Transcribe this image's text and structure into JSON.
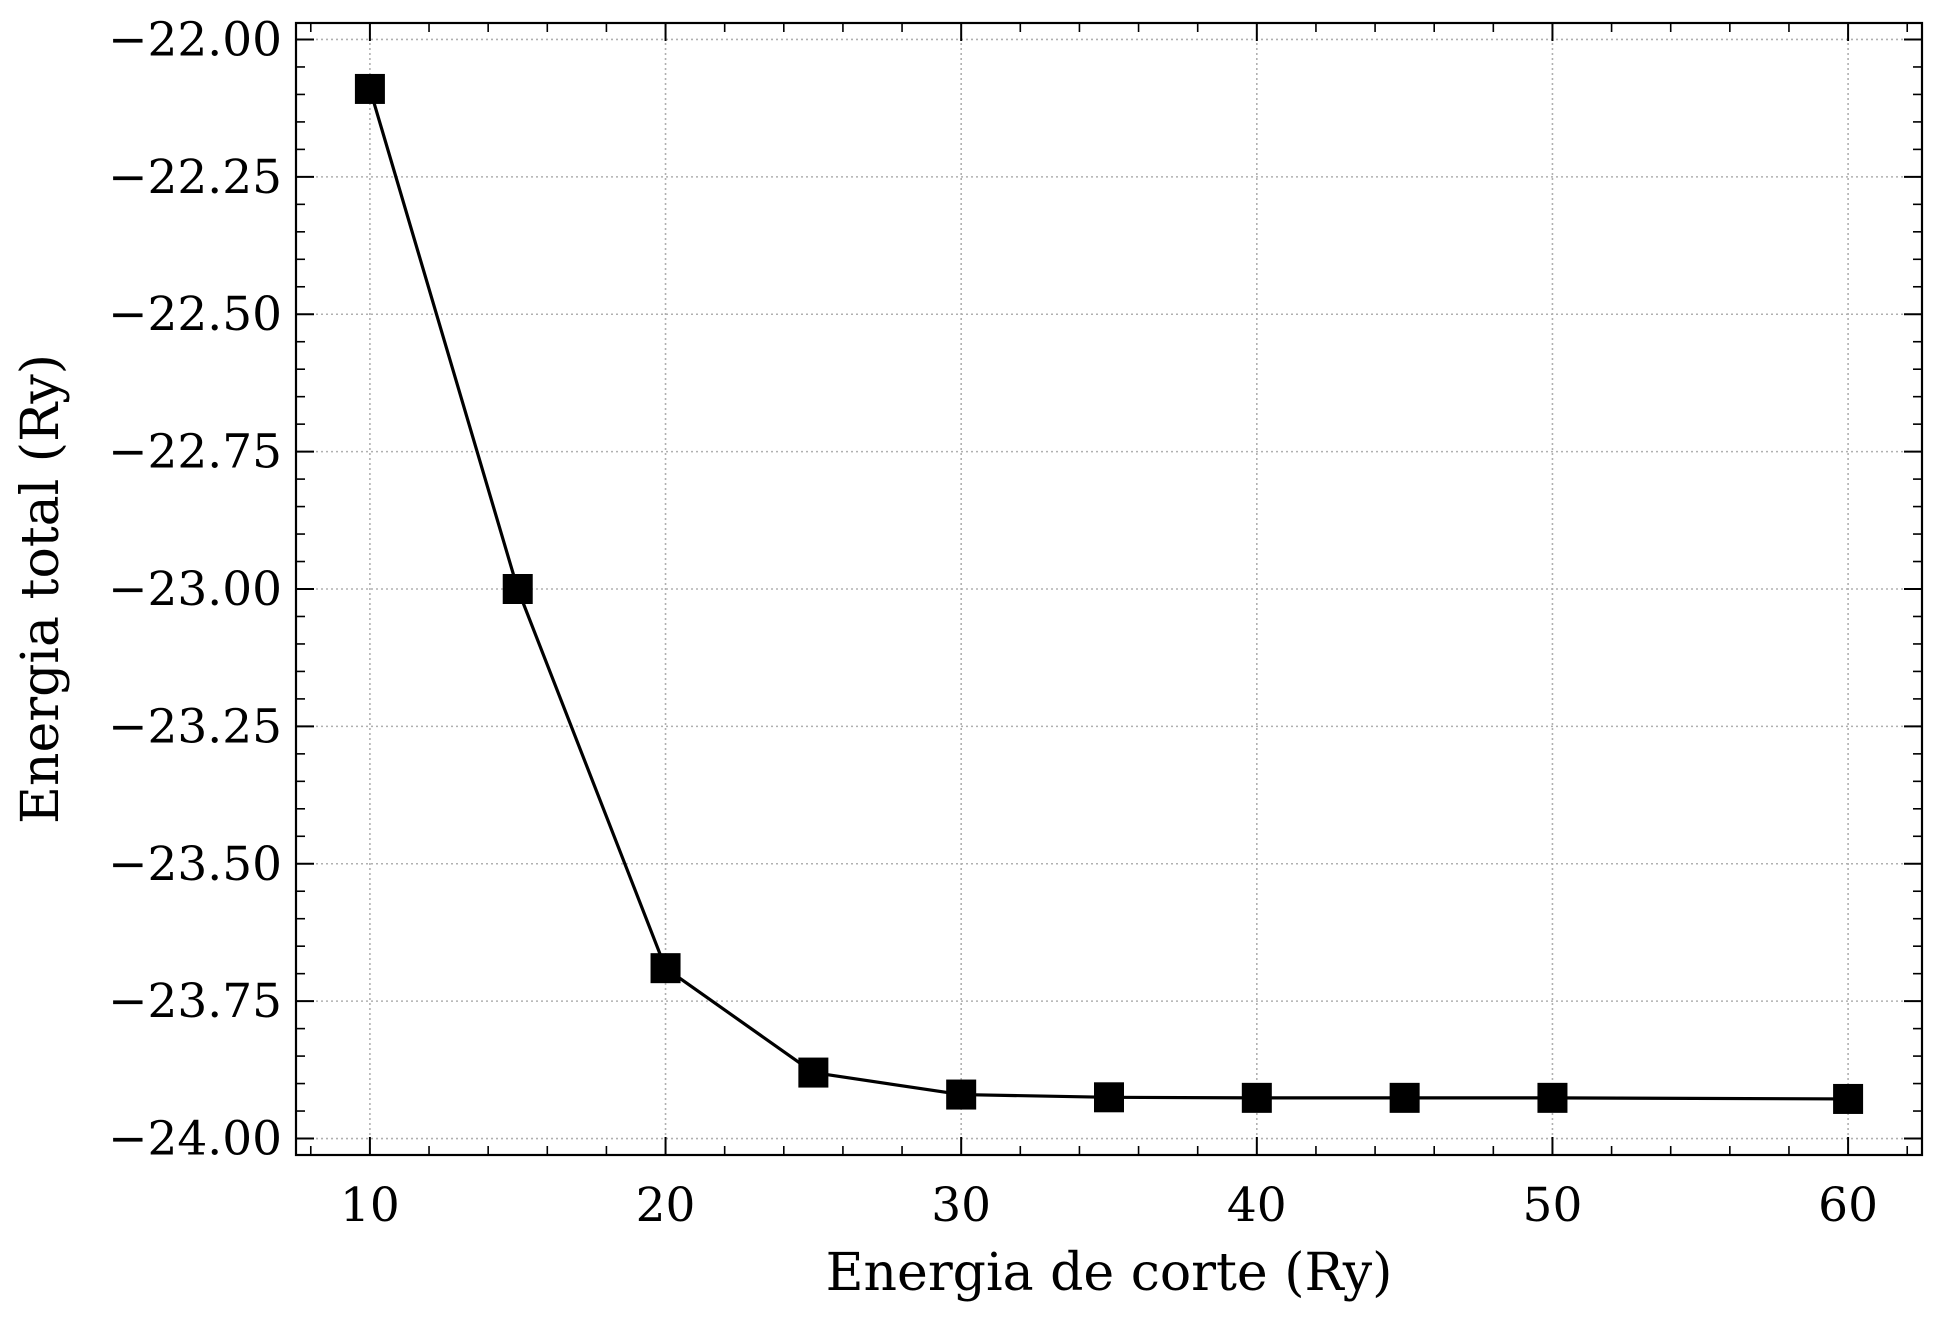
{
  "chart_data": {
    "type": "line",
    "title": "",
    "xlabel": "Energia de corte (Ry)",
    "ylabel": "Energia total (Ry)",
    "xlim": [
      7.5,
      62.5
    ],
    "ylim": [
      -24.03,
      -21.97
    ],
    "x_ticks": [
      10,
      20,
      30,
      40,
      50,
      60
    ],
    "x_tick_labels": [
      "10",
      "20",
      "30",
      "40",
      "50",
      "60"
    ],
    "y_ticks": [
      -22.0,
      -22.25,
      -22.5,
      -22.75,
      -23.0,
      -23.25,
      -23.5,
      -23.75,
      -24.0
    ],
    "y_tick_labels": [
      "−22.00",
      "−22.25",
      "−22.50",
      "−22.75",
      "−23.00",
      "−23.25",
      "−23.50",
      "−23.75",
      "−24.00"
    ],
    "x_minor_step": 2,
    "y_minor_step": 0.05,
    "grid": true,
    "legend": "none",
    "series": [
      {
        "marker": "square",
        "color": "#000000",
        "x": [
          10,
          15,
          20,
          25,
          30,
          35,
          40,
          45,
          50,
          60
        ],
        "y": [
          -22.09,
          -23.0,
          -23.69,
          -23.88,
          -23.92,
          -23.925,
          -23.926,
          -23.926,
          -23.926,
          -23.928
        ]
      }
    ]
  }
}
